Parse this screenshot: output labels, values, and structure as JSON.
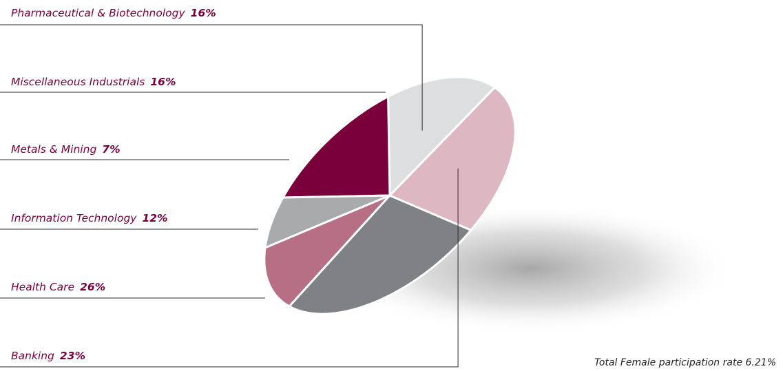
{
  "chart_data": {
    "type": "pie",
    "title": "",
    "slices": [
      {
        "label": "Pharmaceutical & Biotechnology",
        "value_label": "16%",
        "value": 16,
        "color": "#dcdee0"
      },
      {
        "label": "Miscellaneous Industrials",
        "value_label": "16%",
        "value": 16,
        "color": "#7a003c"
      },
      {
        "label": "Metals & Mining",
        "value_label": "7%",
        "value": 7,
        "color": "#a8aaac"
      },
      {
        "label": "Information Technology",
        "value_label": "12%",
        "value": 12,
        "color": "#b66f85"
      },
      {
        "label": "Health Care",
        "value_label": "26%",
        "value": 26,
        "color": "#7f8184"
      },
      {
        "label": "Banking",
        "value_label": "23%",
        "value": 23,
        "color": "#ddb8c3"
      }
    ],
    "label_color": "#7a003c",
    "footnote": "Total Female participation rate 6.21%"
  }
}
